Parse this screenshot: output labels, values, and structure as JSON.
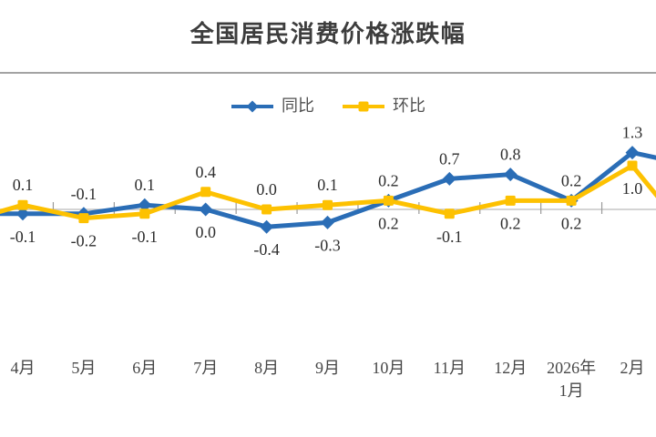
{
  "header": {
    "title": "全国居民消费价格涨跌幅"
  },
  "legend": {
    "items": [
      {
        "label": "同比",
        "color": "#2a6db6",
        "marker": "diamond"
      },
      {
        "label": "环比",
        "color": "#fdc101",
        "marker": "square"
      }
    ]
  },
  "chart_data": {
    "type": "line",
    "title": "全国居民消费价格涨跌幅",
    "categories": [
      "4月",
      "5月",
      "6月",
      "7月",
      "8月",
      "9月",
      "10月",
      "11月",
      "12月",
      "2026年1月",
      "2月"
    ],
    "series": [
      {
        "name": "同比",
        "color": "#2a6db6",
        "marker": "diamond",
        "values": [
          -0.1,
          -0.1,
          0.1,
          0.0,
          -0.4,
          -0.3,
          0.2,
          0.7,
          0.8,
          0.2,
          1.3
        ],
        "label_positions": [
          "below",
          "above",
          "above",
          "below",
          "below",
          "below",
          "above",
          "above",
          "above",
          "above",
          "above"
        ],
        "offscreen_prev": -0.1,
        "offscreen_next": 1.0
      },
      {
        "name": "环比",
        "color": "#fdc101",
        "marker": "square",
        "values": [
          0.1,
          -0.2,
          -0.1,
          0.4,
          0.0,
          0.1,
          0.2,
          -0.1,
          0.2,
          0.2,
          1.0
        ],
        "label_positions": [
          "above",
          "below",
          "below",
          "above",
          "above",
          "above",
          "below",
          "below",
          "below",
          "below",
          "below"
        ],
        "offscreen_prev": -0.3,
        "offscreen_next": -0.7
      }
    ],
    "ylim": [
      -3.1,
      3.1
    ],
    "grid": false,
    "legend_position": "top-center",
    "x_axis": {
      "zero_line": true,
      "tick_style": "cross-at-category-boundaries",
      "labels_position": "low"
    }
  },
  "colors": {
    "background": "#ffffff",
    "divider": "#a3a3a3",
    "axis_line": "#c6c6c6",
    "tick": "#9a9a9a",
    "data_label": "#2e2e2e",
    "month_label": "#474747",
    "title": "#3d3d3d",
    "legend_text": "#4f4f4f"
  }
}
